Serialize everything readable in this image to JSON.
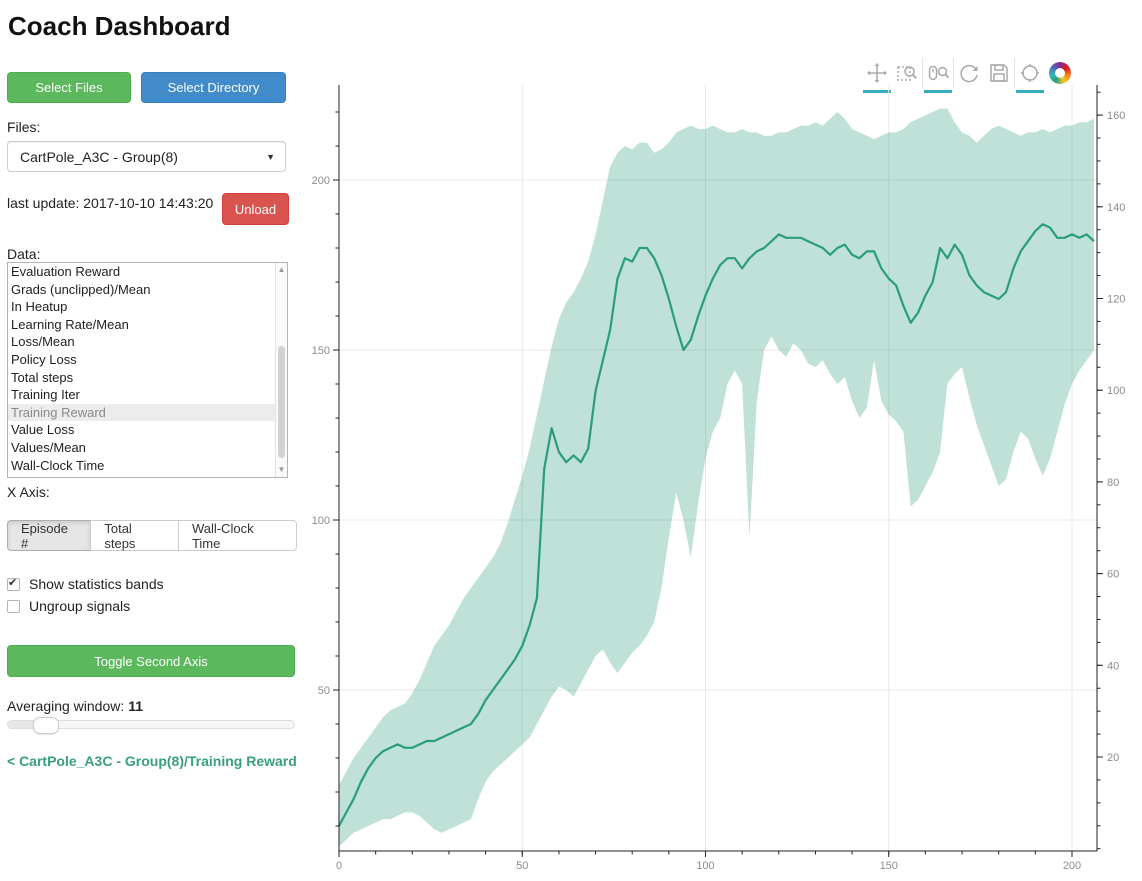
{
  "title": "Coach Dashboard",
  "sidebar": {
    "select_files": "Select Files",
    "select_directory": "Select Directory",
    "files_label": "Files:",
    "files_selected": "CartPole_A3C - Group(8)",
    "last_update": "last update: 2017-10-10 14:43:20",
    "unload": "Unload",
    "data_label": "Data:",
    "data_items": [
      "Evaluation Reward",
      "Grads (unclipped)/Mean",
      "In Heatup",
      "Learning Rate/Mean",
      "Loss/Mean",
      "Policy Loss",
      "Total steps",
      "Training Iter",
      "Training Reward",
      "Value Loss",
      "Values/Mean",
      "Wall-Clock Time"
    ],
    "data_selected": "Training Reward",
    "x_axis_label": "X Axis:",
    "x_axis_options": [
      "Episode #",
      "Total steps",
      "Wall-Clock Time"
    ],
    "x_axis_selected": "Episode #",
    "checkboxes": [
      {
        "label": "Show statistics bands",
        "checked": true
      },
      {
        "label": "Ungroup signals",
        "checked": false
      }
    ],
    "toggle_second_axis": "Toggle Second Axis",
    "averaging_label": "Averaging window:",
    "averaging_value": "11",
    "breadcrumb": "< CartPole_A3C - Group(8)/Training Reward"
  },
  "toolbar": {
    "tools": [
      "pan",
      "box-zoom",
      "wheel-zoom",
      "reset",
      "save",
      "hover",
      "bokeh-logo"
    ],
    "active_tools": [
      "pan",
      "wheel-zoom",
      "hover"
    ]
  },
  "colors": {
    "button_green": "#5cb85c",
    "button_blue": "#428bca",
    "button_red": "#d9534f",
    "line_green": "#2a9d7c",
    "band_fill": "#bbe0d5",
    "link_green": "#399e7e",
    "active_tool_underline": "#35aec6",
    "grid": "#e8e8e8",
    "tick_label": "#8c8c8c"
  },
  "chart_data": {
    "type": "line",
    "title": "",
    "xlabel": "",
    "ylabel": "",
    "legend": "none",
    "grid": true,
    "x_axis": {
      "range": [
        0,
        207
      ],
      "major_ticks": [
        0,
        50,
        100,
        150,
        200
      ],
      "minor_step": 10
    },
    "y_axis_left": {
      "range": [
        2,
        228
      ],
      "major_ticks": [
        50,
        100,
        150,
        200
      ],
      "minor_step": 10
    },
    "y_axis_right": {
      "range": [
        -1,
        167
      ],
      "major_ticks": [
        20,
        40,
        60,
        80,
        100,
        120,
        140,
        160
      ],
      "minor_step": 5
    },
    "x": [
      0,
      2,
      4,
      6,
      8,
      10,
      12,
      14,
      16,
      18,
      20,
      22,
      24,
      26,
      28,
      30,
      32,
      34,
      36,
      38,
      40,
      42,
      44,
      46,
      48,
      50,
      52,
      54,
      56,
      58,
      60,
      62,
      64,
      66,
      68,
      70,
      72,
      74,
      76,
      78,
      80,
      82,
      84,
      86,
      88,
      90,
      92,
      94,
      96,
      98,
      100,
      102,
      104,
      106,
      108,
      110,
      112,
      114,
      116,
      118,
      120,
      122,
      124,
      126,
      128,
      130,
      132,
      134,
      136,
      138,
      140,
      142,
      144,
      146,
      148,
      150,
      152,
      154,
      156,
      158,
      160,
      162,
      164,
      166,
      168,
      170,
      172,
      174,
      176,
      178,
      180,
      182,
      184,
      186,
      188,
      190,
      192,
      194,
      196,
      198,
      200,
      202,
      204,
      206
    ],
    "series": [
      {
        "name": "Training Reward (smoothed mean)",
        "role": "line",
        "color": "#2a9d7c",
        "values": [
          10,
          14,
          18,
          23,
          27,
          30,
          32,
          33,
          34,
          33,
          33,
          34,
          35,
          35,
          36,
          37,
          38,
          39,
          40,
          43,
          47,
          50,
          53,
          56,
          59,
          63,
          69,
          77,
          115,
          127,
          120,
          117,
          119,
          117,
          121,
          138,
          147,
          156,
          171,
          177,
          176,
          180,
          180,
          177,
          172,
          165,
          157,
          150,
          153,
          160,
          166,
          171,
          175,
          177,
          177,
          174,
          177,
          179,
          180,
          182,
          184,
          183,
          183,
          183,
          182,
          181,
          180,
          178,
          180,
          181,
          178,
          177,
          179,
          179,
          174,
          171,
          169,
          163,
          158,
          161,
          166,
          170,
          180,
          177,
          181,
          178,
          172,
          169,
          167,
          166,
          165,
          167,
          174,
          179,
          182,
          185,
          187,
          186,
          183,
          183,
          184,
          183,
          184,
          182
        ]
      },
      {
        "name": "band min",
        "role": "band-lower",
        "color": "#bbe0d5",
        "values": [
          4,
          6,
          8,
          9,
          10,
          11,
          12,
          12,
          13,
          14,
          14,
          13,
          11,
          9,
          8,
          9,
          10,
          11,
          12,
          18,
          23,
          26,
          28,
          30,
          32,
          34,
          36,
          40,
          44,
          48,
          51,
          50,
          48,
          52,
          56,
          60,
          62,
          58,
          55,
          58,
          61,
          63,
          66,
          70,
          80,
          95,
          108,
          100,
          89,
          105,
          118,
          126,
          130,
          140,
          144,
          140,
          95,
          135,
          150,
          154,
          150,
          148,
          152,
          150,
          146,
          145,
          147,
          143,
          140,
          142,
          135,
          130,
          133,
          147,
          135,
          131,
          129,
          126,
          104,
          106,
          110,
          114,
          120,
          140,
          143,
          145,
          136,
          128,
          122,
          116,
          110,
          112,
          120,
          126,
          124,
          118,
          113,
          118,
          126,
          134,
          140,
          144,
          147,
          150
        ]
      },
      {
        "name": "band max",
        "role": "band-upper",
        "color": "#bbe0d5",
        "values": [
          22,
          26,
          30,
          33,
          36,
          39,
          42,
          44,
          45,
          46,
          49,
          53,
          58,
          63,
          66,
          69,
          73,
          77,
          80,
          83,
          86,
          89,
          93,
          99,
          106,
          113,
          121,
          131,
          141,
          151,
          159,
          164,
          167,
          171,
          176,
          184,
          194,
          204,
          208,
          210,
          209,
          211,
          211,
          208,
          209,
          211,
          214,
          215,
          216,
          215,
          215,
          216,
          215,
          214,
          214,
          215,
          214,
          214,
          213,
          213,
          214,
          214,
          215,
          216,
          216,
          217,
          216,
          218,
          220,
          218,
          215,
          214,
          213,
          212,
          213,
          214,
          214,
          215,
          217,
          218,
          219,
          220,
          221,
          221,
          217,
          214,
          213,
          211,
          213,
          215,
          216,
          215,
          214,
          213,
          214,
          214,
          215,
          214,
          215,
          216,
          216,
          217,
          217,
          218
        ]
      }
    ]
  }
}
